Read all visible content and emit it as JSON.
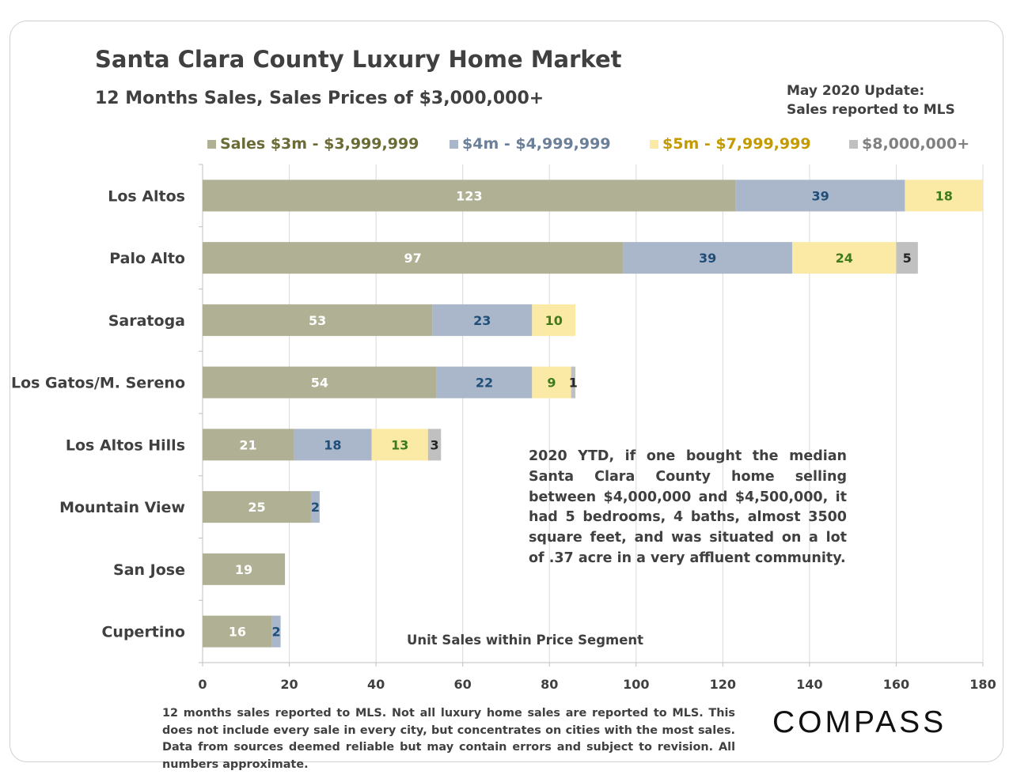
{
  "title": "Santa Clara County Luxury Home Market",
  "subtitle": "12 Months Sales, Sales Prices of $3,000,000+",
  "update_line1": "May 2020 Update:",
  "update_line2": "Sales reported to MLS",
  "note": "2020 YTD, if one bought the median Santa Clara County home selling between $4,000,000 and $4,500,000, it had 5 bedrooms, 4 baths, almost 3500 square feet, and was situated on a lot of .37 acre in a very affluent community.",
  "footer": "12 months sales reported to MLS. Not all luxury home sales are reported to MLS. This does not include every sale in every city, but concentrates on cities with the most sales. Data from sources deemed reliable but may contain errors and subject to revision. All numbers approximate.",
  "logo": "COMPASS",
  "chart_data": {
    "type": "bar",
    "orientation": "horizontal",
    "stacked": true,
    "title": "Santa Clara County Luxury Home Market",
    "xlabel": "Unit Sales within Price Segment",
    "ylabel": "",
    "xlim": [
      0,
      180
    ],
    "xticks": [
      0,
      20,
      40,
      60,
      80,
      100,
      120,
      140,
      160,
      180
    ],
    "grid": true,
    "legend_position": "top",
    "categories": [
      "Los Altos",
      "Palo Alto",
      "Saratoga",
      "Los Gatos/M. Sereno",
      "Los Altos Hills",
      "Mountain View",
      "San Jose",
      "Cupertino"
    ],
    "series": [
      {
        "name": "Sales $3m - $3,999,999",
        "color": "#b0b094",
        "label_color": "#ffffff",
        "legend_color": "#6b6b36",
        "values": [
          123,
          97,
          53,
          54,
          21,
          25,
          19,
          16
        ]
      },
      {
        "name": "$4m - $4,999,999",
        "color": "#aab6c9",
        "label_color": "#1f4e79",
        "legend_color": "#6b7f99",
        "values": [
          39,
          39,
          23,
          22,
          18,
          2,
          0,
          2
        ]
      },
      {
        "name": "$5m - $7,999,999",
        "color": "#fbe9a6",
        "label_color": "#3f7a1f",
        "legend_color": "#c49a00",
        "values": [
          18,
          24,
          10,
          9,
          13,
          0,
          0,
          0
        ]
      },
      {
        "name": "$8,000,000+",
        "color": "#c0c0c0",
        "label_color": "#262626",
        "legend_color": "#808080",
        "values": [
          0,
          5,
          0,
          1,
          3,
          0,
          0,
          0
        ]
      }
    ]
  }
}
